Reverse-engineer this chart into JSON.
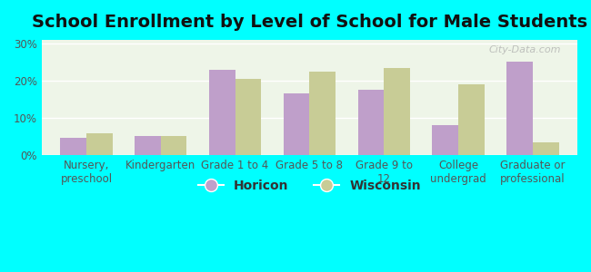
{
  "title": "School Enrollment by Level of School for Male Students",
  "categories": [
    "Nursery,\npreschool",
    "Kindergarten",
    "Grade 1 to 4",
    "Grade 5 to 8",
    "Grade 9 to\n12",
    "College\nundergrad",
    "Graduate or\nprofessional"
  ],
  "horicon": [
    4.5,
    5.2,
    23.0,
    16.5,
    17.5,
    8.0,
    25.0
  ],
  "wisconsin": [
    5.8,
    5.0,
    20.5,
    22.5,
    23.5,
    19.0,
    3.5
  ],
  "horicon_color": "#bf9fca",
  "wisconsin_color": "#c8cc96",
  "background_color": "#00ffff",
  "plot_bg_color": "#eef5e8",
  "yticks": [
    0,
    10,
    20,
    30
  ],
  "ylim": [
    0,
    31
  ],
  "legend_labels": [
    "Horicon",
    "Wisconsin"
  ],
  "title_fontsize": 14,
  "tick_fontsize": 8.5,
  "legend_fontsize": 10,
  "bar_width": 0.35,
  "figsize": [
    6.5,
    3.0
  ],
  "dpi": 100
}
